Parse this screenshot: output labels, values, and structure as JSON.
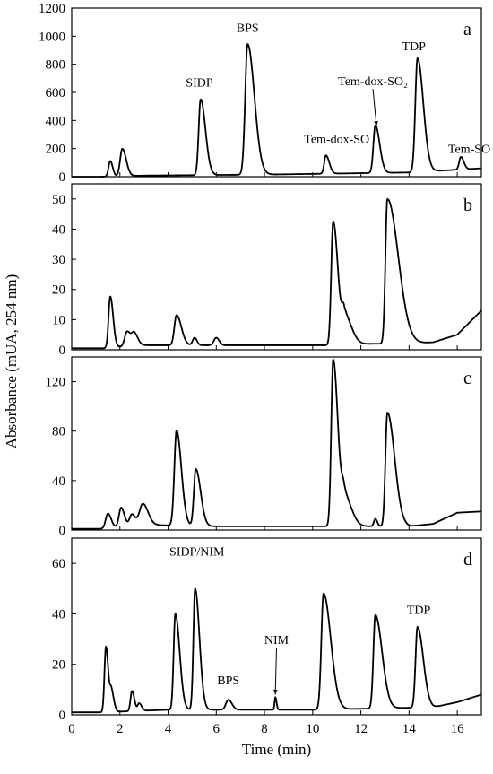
{
  "chart_data": {
    "type": "line",
    "xlabel": "Time (min)",
    "ylabel": "Absorbance (mUA, 254 nm)",
    "xlim": [
      0,
      17
    ],
    "xticks": [
      0,
      2,
      4,
      6,
      8,
      10,
      12,
      14,
      16
    ],
    "grid": false,
    "panels": [
      {
        "letter": "a",
        "ylim": [
          0,
          1200
        ],
        "yticks": [
          0,
          200,
          400,
          600,
          800,
          1000,
          1200
        ],
        "peaks": [
          {
            "t": 1.6,
            "h": 110,
            "w": 0.07,
            "tail": 0.1
          },
          {
            "t": 2.1,
            "h": 195,
            "w": 0.09,
            "tail": 0.16
          },
          {
            "t": 5.35,
            "h": 540,
            "w": 0.08,
            "tail": 0.2
          },
          {
            "t": 7.3,
            "h": 930,
            "w": 0.1,
            "tail": 0.28
          },
          {
            "t": 10.55,
            "h": 130,
            "w": 0.07,
            "tail": 0.14
          },
          {
            "t": 12.6,
            "h": 340,
            "w": 0.08,
            "tail": 0.18
          },
          {
            "t": 14.35,
            "h": 810,
            "w": 0.09,
            "tail": 0.24
          },
          {
            "t": 16.15,
            "h": 90,
            "w": 0.07,
            "tail": 0.12
          }
        ],
        "baseline": [
          [
            0,
            0
          ],
          [
            1.2,
            0
          ],
          [
            3,
            8
          ],
          [
            8,
            15
          ],
          [
            14,
            30
          ],
          [
            17,
            60
          ]
        ],
        "annotations": [
          {
            "text": "SIDP",
            "x": 5.3,
            "y": 640
          },
          {
            "text": "BPS",
            "x": 7.3,
            "y": 1030
          },
          {
            "text": "Tem-dox-SO₂",
            "x": 12.5,
            "y": 650,
            "arrow_to": [
              12.65,
              360
            ]
          },
          {
            "text": "Tem-dox-SO",
            "x": 11.0,
            "y": 240
          },
          {
            "text": "TDP",
            "x": 14.2,
            "y": 900
          },
          {
            "text": "Tem-SO",
            "x": 16.5,
            "y": 170
          }
        ]
      },
      {
        "letter": "b",
        "ylim": [
          0,
          55
        ],
        "yticks": [
          0,
          10,
          20,
          30,
          40,
          50
        ],
        "peaks": [
          {
            "t": 1.6,
            "h": 17,
            "w": 0.07,
            "tail": 0.12
          },
          {
            "t": 2.3,
            "h": 5,
            "w": 0.1,
            "tail": 0.15
          },
          {
            "t": 2.6,
            "h": 4,
            "w": 0.1,
            "tail": 0.15
          },
          {
            "t": 4.35,
            "h": 10,
            "w": 0.09,
            "tail": 0.2
          },
          {
            "t": 5.1,
            "h": 2.5,
            "w": 0.08,
            "tail": 0.1
          },
          {
            "t": 6.0,
            "h": 2.5,
            "w": 0.1,
            "tail": 0.12
          },
          {
            "t": 10.85,
            "h": 41,
            "w": 0.08,
            "tail": 0.2
          },
          {
            "t": 11.3,
            "h": 10,
            "w": 0.09,
            "tail": 0.3
          },
          {
            "t": 13.1,
            "h": 48,
            "w": 0.08,
            "tail": 0.45
          }
        ],
        "baseline": [
          [
            0,
            0.5
          ],
          [
            1.3,
            0.5
          ],
          [
            3,
            1.5
          ],
          [
            10.5,
            1.5
          ],
          [
            12.5,
            2
          ],
          [
            14,
            2
          ],
          [
            15,
            2.5
          ],
          [
            16,
            5
          ],
          [
            17,
            13
          ]
        ],
        "annotations": []
      },
      {
        "letter": "c",
        "ylim": [
          0,
          140
        ],
        "yticks": [
          0,
          40,
          80,
          120
        ],
        "peaks": [
          {
            "t": 1.5,
            "h": 12,
            "w": 0.09,
            "tail": 0.14
          },
          {
            "t": 2.05,
            "h": 16,
            "w": 0.09,
            "tail": 0.14
          },
          {
            "t": 2.5,
            "h": 10,
            "w": 0.1,
            "tail": 0.14
          },
          {
            "t": 2.95,
            "h": 18,
            "w": 0.14,
            "tail": 0.22
          },
          {
            "t": 4.35,
            "h": 77,
            "w": 0.09,
            "tail": 0.2
          },
          {
            "t": 5.15,
            "h": 46,
            "w": 0.08,
            "tail": 0.2
          },
          {
            "t": 10.85,
            "h": 135,
            "w": 0.08,
            "tail": 0.2
          },
          {
            "t": 11.3,
            "h": 25,
            "w": 0.1,
            "tail": 0.3
          },
          {
            "t": 12.6,
            "h": 6,
            "w": 0.06,
            "tail": 0.08
          },
          {
            "t": 13.1,
            "h": 92,
            "w": 0.08,
            "tail": 0.3
          }
        ],
        "baseline": [
          [
            0,
            1
          ],
          [
            1.2,
            1
          ],
          [
            3.5,
            4
          ],
          [
            6,
            3
          ],
          [
            10,
            3
          ],
          [
            14,
            3
          ],
          [
            15,
            5
          ],
          [
            16,
            14
          ],
          [
            17,
            15
          ]
        ],
        "annotations": []
      },
      {
        "letter": "d",
        "ylim": [
          0,
          70
        ],
        "yticks": [
          0,
          20,
          40,
          60
        ],
        "peaks": [
          {
            "t": 1.42,
            "h": 26,
            "w": 0.06,
            "tail": 0.1
          },
          {
            "t": 1.65,
            "h": 8,
            "w": 0.06,
            "tail": 0.1
          },
          {
            "t": 2.5,
            "h": 8,
            "w": 0.06,
            "tail": 0.1
          },
          {
            "t": 2.8,
            "h": 3,
            "w": 0.06,
            "tail": 0.1
          },
          {
            "t": 4.3,
            "h": 38,
            "w": 0.07,
            "tail": 0.18
          },
          {
            "t": 5.12,
            "h": 48,
            "w": 0.07,
            "tail": 0.18
          },
          {
            "t": 6.5,
            "h": 4,
            "w": 0.1,
            "tail": 0.15
          },
          {
            "t": 8.45,
            "h": 5,
            "w": 0.03,
            "tail": 0.05
          },
          {
            "t": 10.45,
            "h": 46,
            "w": 0.09,
            "tail": 0.3
          },
          {
            "t": 12.6,
            "h": 37,
            "w": 0.08,
            "tail": 0.28
          },
          {
            "t": 14.35,
            "h": 32,
            "w": 0.08,
            "tail": 0.24
          }
        ],
        "baseline": [
          [
            0,
            1
          ],
          [
            1.2,
            1
          ],
          [
            4,
            2
          ],
          [
            10,
            2
          ],
          [
            15,
            3
          ],
          [
            16,
            5
          ],
          [
            17,
            8
          ]
        ],
        "annotations": [
          {
            "text": "SIDP/NIM",
            "x": 5.2,
            "y": 63
          },
          {
            "text": "BPS",
            "x": 6.5,
            "y": 12
          },
          {
            "text": "NIM",
            "x": 8.5,
            "y": 28,
            "arrow_to": [
              8.45,
              8
            ]
          },
          {
            "text": "TDP",
            "x": 14.4,
            "y": 40
          }
        ]
      }
    ]
  }
}
